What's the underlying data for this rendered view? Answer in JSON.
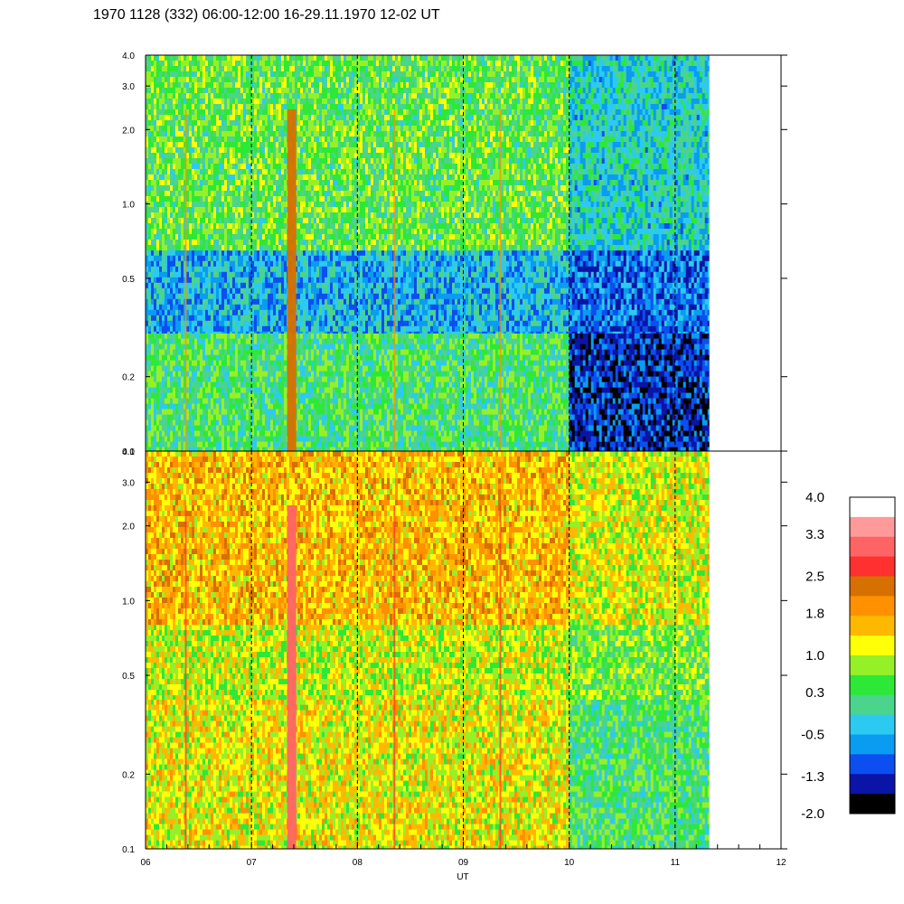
{
  "chart_data": {
    "type": "heatmap",
    "title": "1970 1128 (332) 06:00-12:00 16-29.11.1970  12-02 UT",
    "xlabel": "UT",
    "x_range": [
      6,
      12
    ],
    "x_tick_labels": [
      "06",
      "07",
      "08",
      "09",
      "10",
      "11",
      "12"
    ],
    "data_end_x": 11.32,
    "dashed_lines_x": [
      7,
      8,
      9,
      10,
      11
    ],
    "bright_streaks_x": [
      6.38,
      7.38,
      8.35,
      9.35
    ],
    "y_scale": "log",
    "y_range": [
      0.1,
      4.0
    ],
    "y_tick_values": [
      0.1,
      0.2,
      0.5,
      1.0,
      2.0,
      3.0,
      4.0
    ],
    "y_tick_labels": [
      "0.1",
      "0.2",
      "0.5",
      "1.0",
      "2.0",
      "3.0",
      "4.0"
    ],
    "panels": [
      {
        "name": "upper",
        "time_segments": [
          {
            "x": [
              6,
              10
            ],
            "y_bands": [
              {
                "y": [
                  0.1,
                  0.3
                ],
                "level": 0.3
              },
              {
                "y": [
                  0.3,
                  0.65
                ],
                "level": -0.5
              },
              {
                "y": [
                  0.65,
                  4.0
                ],
                "level": 0.5
              }
            ]
          },
          {
            "x": [
              10,
              11.32
            ],
            "y_bands": [
              {
                "y": [
                  0.1,
                  0.3
                ],
                "level": -1.3
              },
              {
                "y": [
                  0.3,
                  0.65
                ],
                "level": -0.9
              },
              {
                "y": [
                  0.65,
                  4.0
                ],
                "level": -0.2
              }
            ]
          }
        ],
        "streak_level": 2.0
      },
      {
        "name": "lower",
        "time_segments": [
          {
            "x": [
              6,
              10
            ],
            "y_bands": [
              {
                "y": [
                  0.1,
                  0.4
                ],
                "level": 1.2
              },
              {
                "y": [
                  0.4,
                  0.8
                ],
                "level": 1.0
              },
              {
                "y": [
                  0.8,
                  4.0
                ],
                "level": 1.6
              }
            ]
          },
          {
            "x": [
              10,
              11.32
            ],
            "y_bands": [
              {
                "y": [
                  0.1,
                  0.4
                ],
                "level": 0.3
              },
              {
                "y": [
                  0.4,
                  0.8
                ],
                "level": 0.6
              },
              {
                "y": [
                  0.8,
                  4.0
                ],
                "level": 1.1
              }
            ]
          }
        ],
        "streak_level": 2.7
      }
    ],
    "colorbar": {
      "labels": [
        "4.0",
        "3.3",
        "2.5",
        "1.8",
        "1.0",
        "0.3",
        "-0.5",
        "-1.3",
        "-2.0"
      ],
      "bounds": [
        -2.0,
        4.0
      ],
      "colors": [
        "#000000",
        "#0a14a6",
        "#0c4ef0",
        "#0a9cf0",
        "#2ccaf0",
        "#4ad48c",
        "#2ee838",
        "#96f028",
        "#ffff08",
        "#ffb800",
        "#ff9000",
        "#d67000",
        "#ff3030",
        "#ff6464",
        "#ff9a9a",
        "#ffffff"
      ]
    }
  }
}
